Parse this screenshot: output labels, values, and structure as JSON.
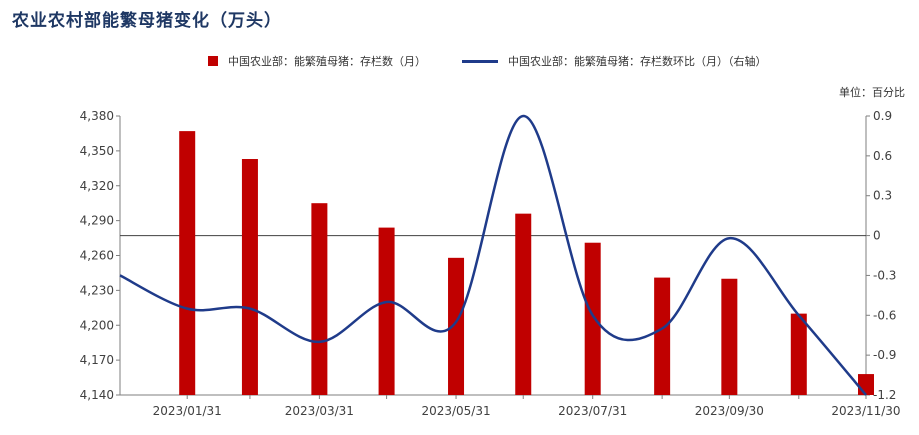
{
  "title": "农业农村部能繁母猪变化（万头）",
  "unit_label": "单位：百分比",
  "colors": {
    "bar": "#c00000",
    "line": "#1f3b8a",
    "title": "#1f3864"
  },
  "chart_data": {
    "type": "bar",
    "title": "农业农村部能繁母猪变化（万头）",
    "series": [
      {
        "name": "中国农业部：能繁殖母猪：存栏数（月）",
        "type": "bar",
        "axis": "left",
        "values": [
          4367,
          4343,
          4305,
          4284,
          4258,
          4296,
          4271,
          4241,
          4240,
          4210,
          4158
        ]
      },
      {
        "name": "中国农业部：能繁殖母猪：存栏数环比（月）（右轴）",
        "type": "line",
        "axis": "right",
        "values": [
          -0.3,
          -0.55,
          -0.55,
          -0.8,
          -0.5,
          -0.65,
          0.9,
          -0.6,
          -0.7,
          -0.02,
          -0.6,
          -1.2
        ]
      }
    ],
    "bar_x": [
      "2023-01-31",
      "2023-02-28",
      "2023-03-31",
      "2023-04-30",
      "2023-05-31",
      "2023-06-30",
      "2023-07-31",
      "2023-08-31",
      "2023-09-30",
      "2023-10-31",
      "2023-11-30"
    ],
    "line_x": [
      "2023-01-01",
      "2023-01-31",
      "2023-02-28",
      "2023-03-31",
      "2023-04-30",
      "2023-05-31",
      "2023-06-30",
      "2023-07-31",
      "2023-08-31",
      "2023-09-30",
      "2023-10-31",
      "2023-11-30"
    ],
    "x_tick_labels": [
      "2023/01/31",
      "2023/03/31",
      "2023/05/31",
      "2023/07/31",
      "2023/09/30",
      "2023/11/30"
    ],
    "left_axis": {
      "ylim": [
        4140,
        4380
      ],
      "ticks": [
        4140,
        4170,
        4200,
        4230,
        4260,
        4290,
        4320,
        4350,
        4380
      ],
      "tick_labels": [
        "4,140",
        "4,170",
        "4,200",
        "4,230",
        "4,260",
        "4,290",
        "4,320",
        "4,350",
        "4,380"
      ]
    },
    "right_axis": {
      "ylim": [
        -1.2,
        0.9
      ],
      "ticks": [
        -1.2,
        -0.9,
        -0.6,
        -0.3,
        0,
        0.3,
        0.6,
        0.9
      ],
      "tick_labels": [
        "-1.2",
        "-0.9",
        "-0.6",
        "-0.3",
        "0",
        "0.3",
        "0.6",
        "0.9"
      ]
    },
    "grid": false,
    "legend_position": "top"
  }
}
